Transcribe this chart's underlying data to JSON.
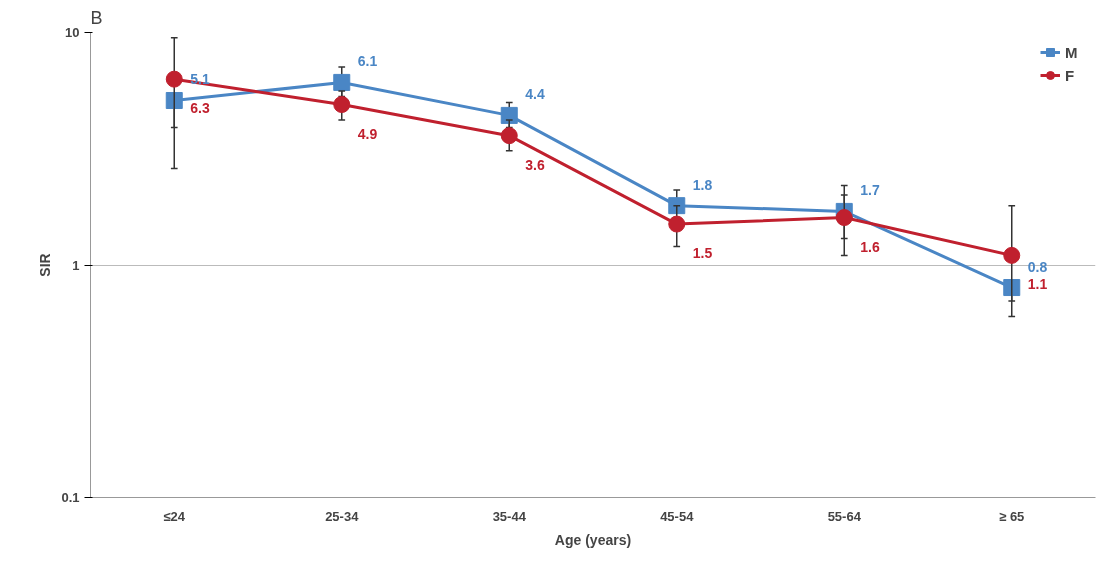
{
  "chart_data": {
    "type": "line",
    "xlabel": "Age (years)",
    "ylabel": "SIR",
    "annotations": [
      "B"
    ],
    "categories": [
      "≤24",
      "25-34",
      "35-44",
      "45-54",
      "55-64",
      "≥ 65"
    ],
    "series": [
      {
        "name": "M",
        "color": "#4a86c5",
        "marker": "square",
        "values": [
          5.1,
          6.1,
          4.4,
          1.8,
          1.7,
          0.8
        ],
        "errors": [
          [
            3.9,
            5.1
          ],
          [
            5.3,
            7.1
          ],
          [
            3.9,
            5.0
          ],
          [
            1.8,
            2.1
          ],
          [
            1.3,
            2.2
          ],
          [
            0.6,
            0.8
          ]
        ]
      },
      {
        "name": "F",
        "color": "#c0202e",
        "marker": "circle",
        "values": [
          6.3,
          4.9,
          3.6,
          1.5,
          1.6,
          1.1
        ],
        "errors": [
          [
            2.6,
            9.5
          ],
          [
            4.2,
            5.6
          ],
          [
            3.1,
            4.2
          ],
          [
            1.2,
            1.8
          ],
          [
            1.1,
            2.0
          ],
          [
            0.7,
            1.8
          ]
        ]
      }
    ],
    "ylim": [
      0.1,
      10
    ],
    "yticks": [
      0.1,
      1,
      10
    ],
    "log": true,
    "grid": "y",
    "legend": "top right",
    "data_labels": true
  }
}
